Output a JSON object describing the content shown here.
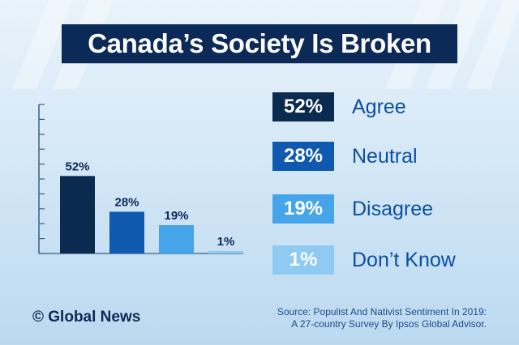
{
  "title": "Canada’s Society Is Broken",
  "chart_data": {
    "type": "bar",
    "categories": [
      "Agree",
      "Neutral",
      "Disagree",
      "Don’t Know"
    ],
    "values": [
      52,
      28,
      19,
      1
    ],
    "value_labels": [
      "52%",
      "28%",
      "19%",
      "1%"
    ],
    "colors": [
      "#0a2a50",
      "#0f5aae",
      "#45a4ea",
      "#8fcaf2"
    ],
    "ylim": [
      0,
      100
    ],
    "grid": false,
    "legend": "right"
  },
  "legend": [
    {
      "value": "52%",
      "label": "Agree",
      "color": "#0a2a50",
      "text_color": "#ffffff"
    },
    {
      "value": "28%",
      "label": "Neutral",
      "color": "#0f5aae",
      "text_color": "#ffffff"
    },
    {
      "value": "19%",
      "label": "Disagree",
      "color": "#45a4ea",
      "text_color": "#ffffff"
    },
    {
      "value": "1%",
      "label": "Don’t Know",
      "color": "#8fcaf2",
      "text_color": "#ffffff"
    }
  ],
  "footer": {
    "brand": "© Global News",
    "source_line1": "Source: Populist And Nativist Sentiment In 2019:",
    "source_line2": "A 27-country Survey By Ipsos Global Advisor."
  }
}
